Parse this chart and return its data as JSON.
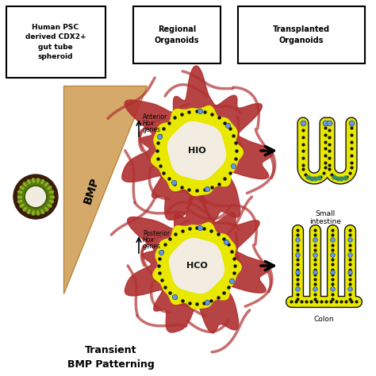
{
  "bg_color": "#ffffff",
  "box1_text": "Human PSC\nderived CDX2+\ngut tube\nspheroid",
  "box2_text": "Regional\nOrganoids",
  "box3_text": "Transplanted\nOrganoids",
  "hio_label": "HIO",
  "hco_label": "HCO",
  "small_intestine_label": "Small\nintestine",
  "colon_label": "Colon",
  "bmp_label": "BMP",
  "bottom_text": "Transient\nBMP Patterning",
  "yellow_color": "#e8e800",
  "red_color": "#b03030",
  "black_color": "#111111",
  "blue_color": "#6699dd",
  "teal_color": "#3a8a6a",
  "brown_color": "#4a2010",
  "olive_color": "#5a7a10",
  "bmp_triangle_color": "#d4a96a",
  "bmp_triangle_edge": "#b8883a"
}
